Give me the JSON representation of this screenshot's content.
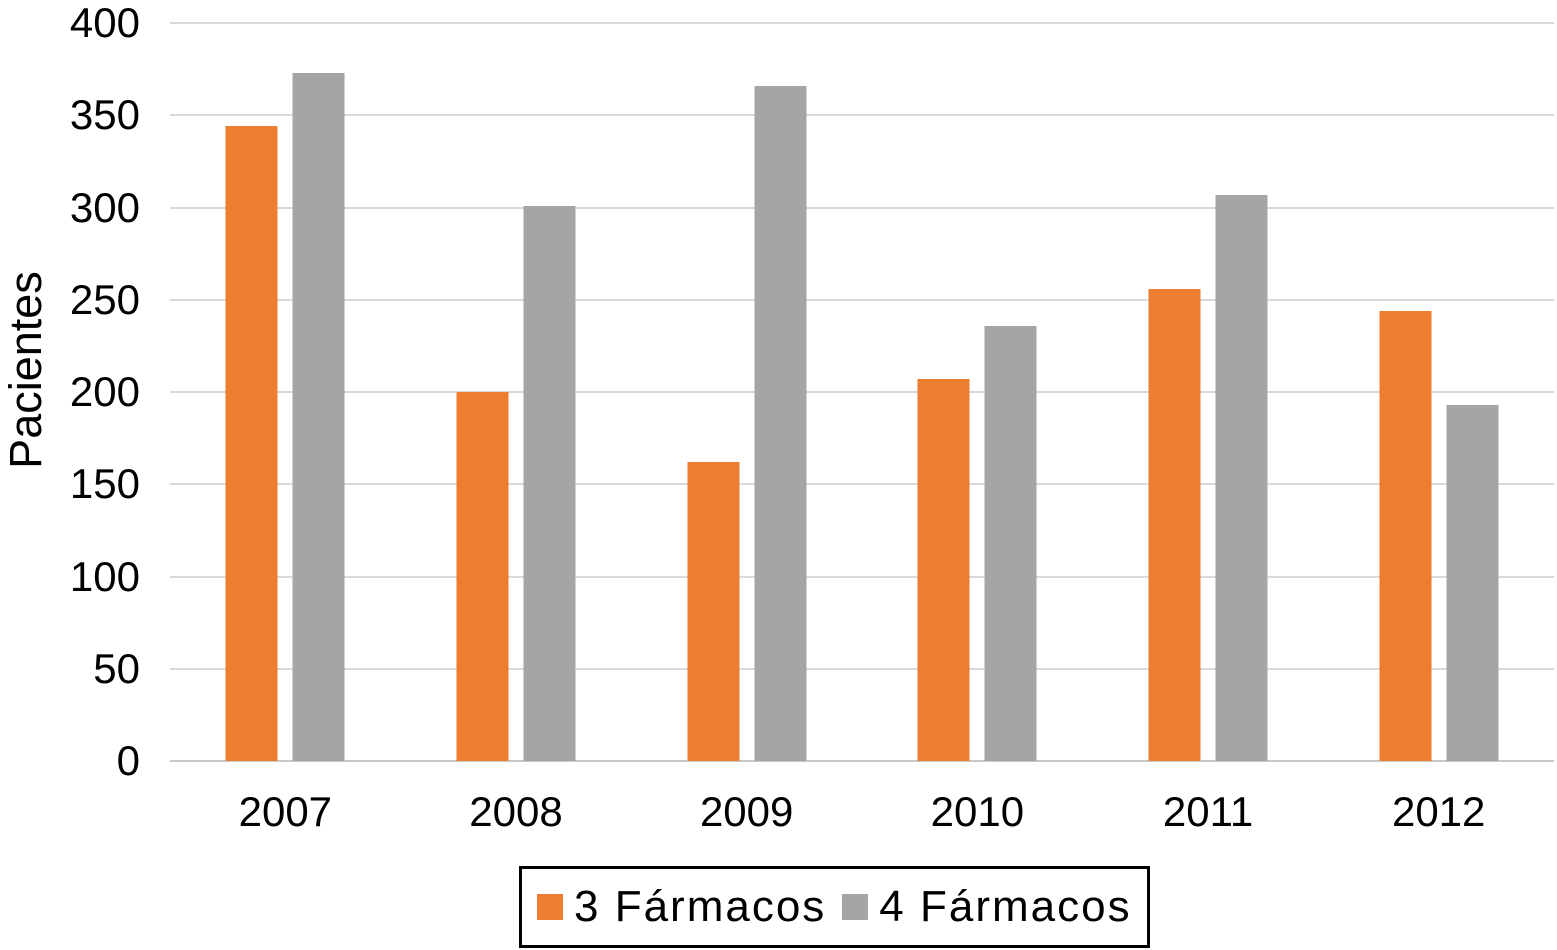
{
  "chart_data": {
    "type": "bar",
    "title": "",
    "xlabel": "",
    "ylabel": "Pacientes",
    "categories": [
      "2007",
      "2008",
      "2009",
      "2010",
      "2011",
      "2012"
    ],
    "series": [
      {
        "name": "3 Fármacos",
        "color": "#ED7D31",
        "values": [
          344,
          200,
          162,
          207,
          256,
          244
        ]
      },
      {
        "name": "4 Fármacos",
        "color": "#A5A5A5",
        "values": [
          373,
          301,
          366,
          236,
          307,
          193
        ]
      }
    ],
    "ylim": [
      0,
      400
    ],
    "ytick_step": 50,
    "ytick_labels": [
      "0",
      "50",
      "100",
      "150",
      "200",
      "250",
      "300",
      "350",
      "400"
    ],
    "grid": true,
    "gridline_color": "#D9D9D9",
    "axis_line_color": "#C8C8C8",
    "legend_position": "bottom",
    "background_color": "#FFFFFF",
    "text_color": "#000000"
  }
}
